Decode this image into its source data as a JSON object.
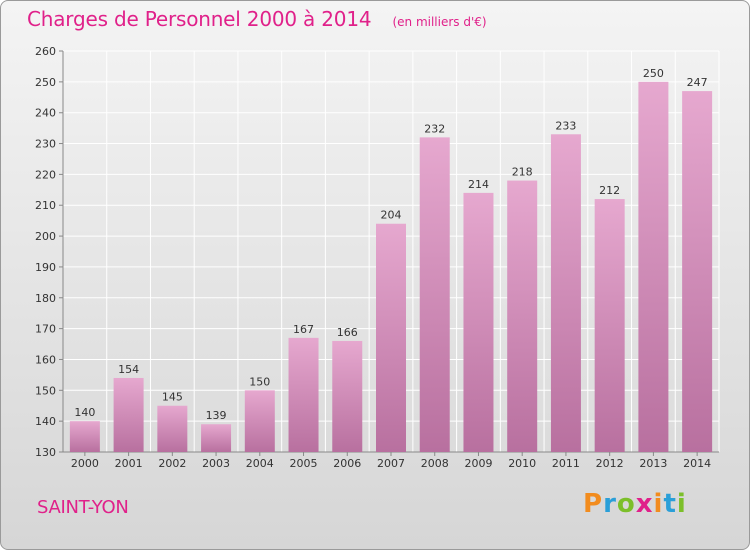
{
  "title": "Charges de Personnel 2000 à 2014",
  "subtitle": "(en milliers d'€)",
  "commune": "SAINT-YON",
  "logo": {
    "letters": [
      "P",
      "r",
      "o",
      "x",
      "i",
      "t",
      "i"
    ],
    "colors": [
      "#f28c1e",
      "#2a9fd8",
      "#7cbf2a",
      "#e0218a",
      "#f28c1e",
      "#2a9fd8",
      "#7cbf2a"
    ]
  },
  "colors": {
    "accent": "#e0218a",
    "bar_top": "#e6a8cf",
    "bar_bottom": "#b8709f"
  },
  "chart_data": {
    "type": "bar",
    "categories": [
      "2000",
      "2001",
      "2002",
      "2003",
      "2004",
      "2005",
      "2006",
      "2007",
      "2008",
      "2009",
      "2010",
      "2011",
      "2012",
      "2013",
      "2014"
    ],
    "values": [
      140,
      154,
      145,
      139,
      150,
      167,
      166,
      204,
      232,
      214,
      218,
      233,
      212,
      250,
      247
    ],
    "ylim": [
      130,
      260
    ],
    "yticks": [
      130,
      140,
      150,
      160,
      170,
      180,
      190,
      200,
      210,
      220,
      230,
      240,
      250,
      260
    ],
    "grid": true
  }
}
